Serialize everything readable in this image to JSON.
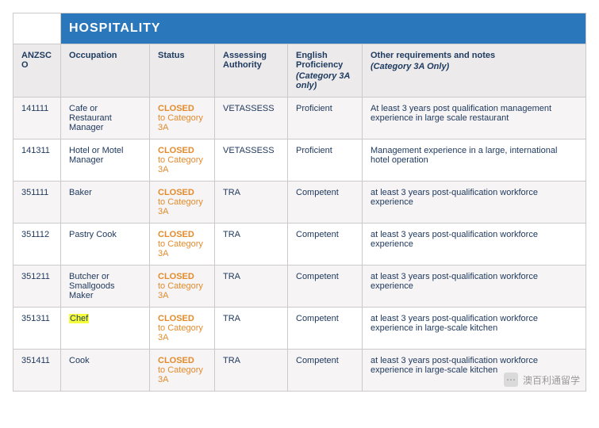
{
  "table": {
    "title": "HOSPITALITY",
    "columns": [
      {
        "label": "ANZSCO"
      },
      {
        "label": "Occupation"
      },
      {
        "label": "Status"
      },
      {
        "label": "Assessing Authority"
      },
      {
        "label": "English Proficiency",
        "sub": "(Category 3A only)"
      },
      {
        "label": "Other requirements and notes",
        "sub": "(Category 3A Only)"
      }
    ],
    "status_closed": "CLOSED",
    "status_sub": "to Category 3A",
    "rows": [
      {
        "code": "141111",
        "occupation": "Cafe or Restaurant Manager",
        "authority": "VETASSESS",
        "proficiency": "Proficient",
        "notes": "At least 3 years post qualification management experience in large scale restaurant",
        "highlight": false,
        "alt": true
      },
      {
        "code": "141311",
        "occupation": "Hotel or Motel Manager",
        "authority": "VETASSESS",
        "proficiency": "Proficient",
        "notes": "Management experience in a large, international hotel operation",
        "highlight": false,
        "alt": false
      },
      {
        "code": "351111",
        "occupation": "Baker",
        "authority": "TRA",
        "proficiency": "Competent",
        "notes": "at least 3 years post-qualification workforce experience",
        "highlight": false,
        "alt": true
      },
      {
        "code": "351112",
        "occupation": "Pastry Cook",
        "authority": "TRA",
        "proficiency": "Competent",
        "notes": "at least 3 years post-qualification workforce experience",
        "highlight": false,
        "alt": false
      },
      {
        "code": "351211",
        "occupation": "Butcher or Smallgoods Maker",
        "authority": "TRA",
        "proficiency": "Competent",
        "notes": "at least 3 years post-qualification workforce experience",
        "highlight": false,
        "alt": true
      },
      {
        "code": "351311",
        "occupation": "Chef",
        "authority": "TRA",
        "proficiency": "Competent",
        "notes": "at least 3 years post-qualification workforce experience in large-scale kitchen",
        "highlight": true,
        "alt": false
      },
      {
        "code": "351411",
        "occupation": "Cook",
        "authority": "TRA",
        "proficiency": "Competent",
        "notes": "at least 3 years post-qualification workforce experience in large-scale kitchen",
        "highlight": false,
        "alt": true
      }
    ]
  },
  "watermark": {
    "text": "澳百利通留学",
    "icon_glyph": "⋯"
  },
  "style": {
    "banner_bg": "#2a77bc",
    "header_bg": "#eceaea",
    "header_fg": "#1f3b60",
    "border": "#ccc9c9",
    "alt_row_bg": "#f6f4f4",
    "status_color": "#e38b2c",
    "highlight_bg": "#f5ff3b",
    "text_color": "#203a5f"
  }
}
